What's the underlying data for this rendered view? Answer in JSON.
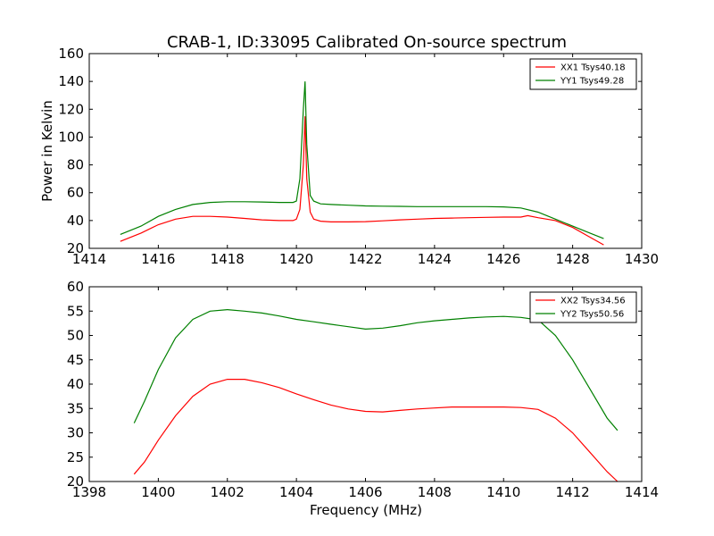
{
  "chart_data": [
    {
      "type": "line",
      "title": "CRAB-1, ID:33095 Calibrated On-source spectrum",
      "xlabel": "",
      "ylabel": "Power in Kelvin",
      "xlim": [
        1414,
        1430
      ],
      "ylim": [
        20,
        160
      ],
      "xticks": [
        1414,
        1416,
        1418,
        1420,
        1422,
        1424,
        1426,
        1428,
        1430
      ],
      "yticks": [
        20,
        40,
        60,
        80,
        100,
        120,
        140,
        160
      ],
      "grid": false,
      "legend": "top-right",
      "series": [
        {
          "name": "XX1 Tsys40.18",
          "color": "#ff0000",
          "x": [
            1414.9,
            1415.5,
            1416.0,
            1416.5,
            1417.0,
            1417.5,
            1418.0,
            1418.5,
            1419.0,
            1419.5,
            1419.9,
            1420.0,
            1420.1,
            1420.2,
            1420.25,
            1420.3,
            1420.4,
            1420.5,
            1420.7,
            1421.0,
            1421.5,
            1422.0,
            1422.5,
            1423.0,
            1423.5,
            1424.0,
            1424.5,
            1425.0,
            1425.5,
            1426.0,
            1426.5,
            1426.7,
            1427.0,
            1427.5,
            1428.0,
            1428.5,
            1428.9
          ],
          "y": [
            25,
            31,
            37,
            41,
            43,
            43,
            42.5,
            41.5,
            40.5,
            40,
            40,
            41,
            48,
            80,
            115,
            70,
            46,
            41,
            39.5,
            39,
            39,
            39.2,
            39.8,
            40.5,
            41,
            41.5,
            41.8,
            42,
            42.3,
            42.5,
            42.5,
            43.5,
            42,
            40,
            35,
            28,
            22.5
          ]
        },
        {
          "name": "YY1 Tsys49.28",
          "color": "#008000",
          "x": [
            1414.9,
            1415.5,
            1416.0,
            1416.5,
            1417.0,
            1417.5,
            1418.0,
            1418.5,
            1419.0,
            1419.5,
            1419.9,
            1420.0,
            1420.1,
            1420.2,
            1420.25,
            1420.3,
            1420.4,
            1420.5,
            1420.7,
            1421.0,
            1421.5,
            1422.0,
            1422.5,
            1423.0,
            1423.5,
            1424.0,
            1424.5,
            1425.0,
            1425.5,
            1426.0,
            1426.5,
            1427.0,
            1427.5,
            1428.0,
            1428.5,
            1428.9
          ],
          "y": [
            30,
            36,
            43,
            48,
            51.5,
            53,
            53.5,
            53.5,
            53.3,
            53,
            53,
            54,
            70,
            120,
            140,
            95,
            58,
            54,
            52,
            51.5,
            51,
            50.5,
            50.3,
            50.2,
            50,
            50,
            50,
            50,
            50,
            49.8,
            49,
            46,
            41,
            36,
            31,
            27
          ]
        }
      ]
    },
    {
      "type": "line",
      "title": "",
      "xlabel": "Frequency (MHz)",
      "ylabel": "",
      "xlim": [
        1398,
        1414
      ],
      "ylim": [
        20,
        60
      ],
      "xticks": [
        1398,
        1400,
        1402,
        1404,
        1406,
        1408,
        1410,
        1412,
        1414
      ],
      "yticks": [
        20,
        25,
        30,
        35,
        40,
        45,
        50,
        55,
        60
      ],
      "grid": false,
      "legend": "top-right",
      "series": [
        {
          "name": "XX2 Tsys34.56",
          "color": "#ff0000",
          "x": [
            1399.3,
            1399.6,
            1400.0,
            1400.5,
            1401.0,
            1401.5,
            1402.0,
            1402.5,
            1403.0,
            1403.5,
            1404.0,
            1404.5,
            1405.0,
            1405.5,
            1406.0,
            1406.5,
            1407.0,
            1407.5,
            1408.0,
            1408.5,
            1409.0,
            1409.5,
            1410.0,
            1410.5,
            1411.0,
            1411.5,
            1412.0,
            1412.5,
            1413.0,
            1413.3
          ],
          "y": [
            21.5,
            24,
            28.5,
            33.5,
            37.5,
            40,
            41,
            41,
            40.3,
            39.3,
            38,
            36.8,
            35.7,
            34.9,
            34.4,
            34.3,
            34.6,
            34.9,
            35.1,
            35.3,
            35.3,
            35.3,
            35.3,
            35.2,
            34.8,
            33,
            30,
            26,
            22,
            20
          ]
        },
        {
          "name": "YY2 Tsys50.56",
          "color": "#008000",
          "x": [
            1399.3,
            1399.6,
            1400.0,
            1400.5,
            1401.0,
            1401.5,
            1402.0,
            1402.5,
            1403.0,
            1403.5,
            1404.0,
            1404.5,
            1405.0,
            1405.5,
            1406.0,
            1406.5,
            1407.0,
            1407.5,
            1408.0,
            1408.5,
            1409.0,
            1409.5,
            1410.0,
            1410.5,
            1411.0,
            1411.5,
            1412.0,
            1412.5,
            1413.0,
            1413.3
          ],
          "y": [
            32,
            36.5,
            43,
            49.5,
            53.3,
            55,
            55.3,
            55,
            54.6,
            54,
            53.3,
            52.8,
            52.3,
            51.8,
            51.3,
            51.5,
            52,
            52.6,
            53,
            53.3,
            53.6,
            53.8,
            53.9,
            53.7,
            53.2,
            50,
            45,
            39,
            33,
            30.5
          ]
        }
      ]
    }
  ]
}
